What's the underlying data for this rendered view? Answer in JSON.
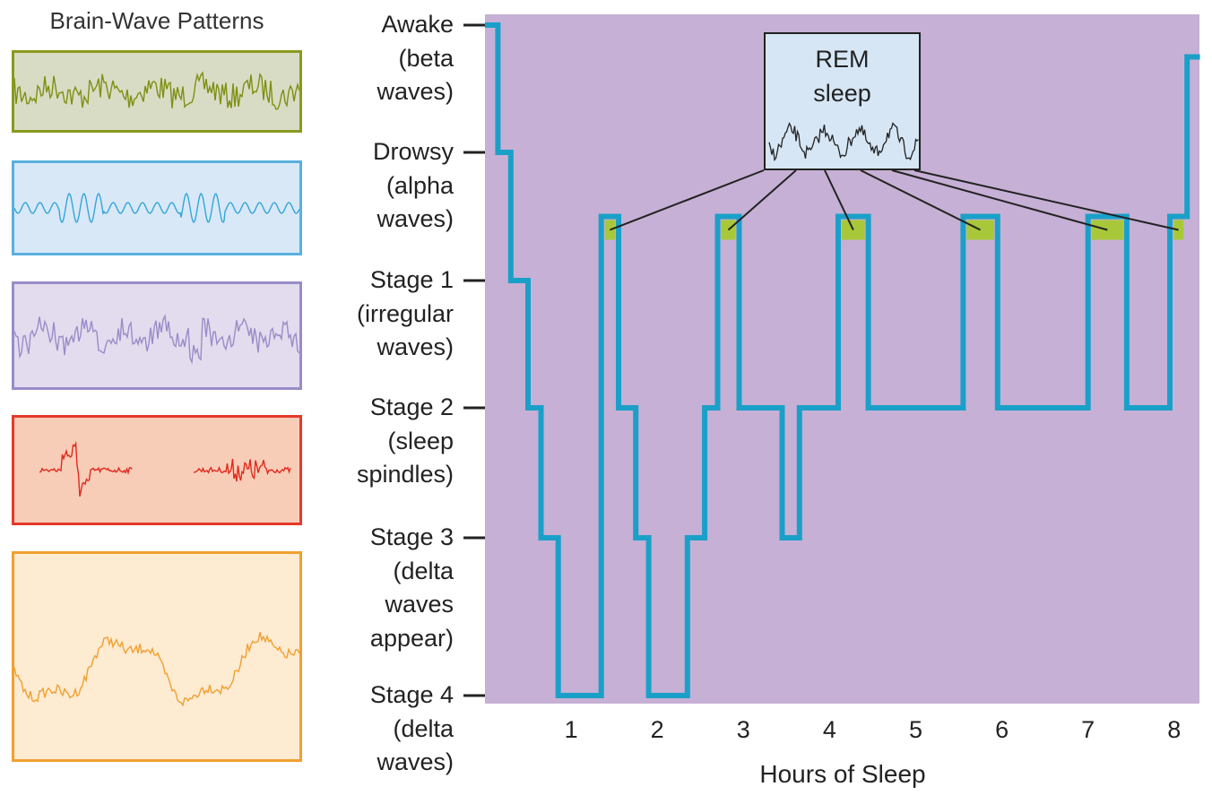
{
  "panel_title": "Brain-Wave Patterns",
  "wave_boxes": [
    {
      "name": "beta",
      "border": "#8a9a1e",
      "fill": "#d9dcc4",
      "stroke": "#7e8f12"
    },
    {
      "name": "alpha",
      "border": "#5ab0e0",
      "fill": "#d8e8f7",
      "stroke": "#33a6d8"
    },
    {
      "name": "irregular",
      "border": "#9a8cc8",
      "fill": "#e2dcee",
      "stroke": "#9a8cc8"
    },
    {
      "name": "spindles",
      "border": "#e53a2a",
      "fill": "#f8cdb8",
      "stroke": "#e02a1e"
    },
    {
      "name": "delta",
      "border": "#f0a030",
      "fill": "#fdebd2",
      "stroke": "#f0a030"
    }
  ],
  "stages": [
    {
      "lines": [
        "Awake",
        "(beta",
        "waves)"
      ],
      "level": 0
    },
    {
      "lines": [
        "Drowsy",
        "(alpha",
        "waves)"
      ],
      "level": 1
    },
    {
      "lines": [
        "Stage 1",
        "(irregular",
        "waves)"
      ],
      "level": 2
    },
    {
      "lines": [
        "Stage 2",
        "(sleep",
        "spindles)"
      ],
      "level": 3
    },
    {
      "lines": [
        "Stage 3",
        "(delta",
        "waves",
        "appear)"
      ],
      "level": 4
    },
    {
      "lines": [
        "Stage 4",
        "(delta",
        "waves)"
      ],
      "level": 5
    }
  ],
  "rem_box": {
    "lines": [
      "REM",
      "sleep"
    ],
    "fill": "#d6e6f5"
  },
  "colors": {
    "plot_bg": "#c6b0d5",
    "trace": "#1aa0c8",
    "rem": "#a8c83a"
  },
  "chart_data": {
    "type": "line",
    "title": "",
    "xlabel": "Hours of Sleep",
    "ylabel": "",
    "x_ticks": [
      1,
      2,
      3,
      4,
      5,
      6,
      7,
      8
    ],
    "xlim": [
      0,
      8.3
    ],
    "y_categories": [
      "Awake (beta waves)",
      "Drowsy (alpha waves)",
      "Stage 1 (irregular waves)",
      "Stage 2 (sleep spindles)",
      "Stage 3 (delta waves appear)",
      "Stage 4 (delta waves)"
    ],
    "rem_level": 1.5,
    "series": [
      {
        "x": [
          0,
          0.15,
          0.15,
          0.3,
          0.3,
          0.5,
          0.5,
          0.65,
          0.65,
          0.85,
          0.85,
          1.35,
          1.35,
          1.55,
          1.55,
          1.75,
          1.75,
          1.9,
          1.9,
          2.35,
          2.35,
          2.55,
          2.55,
          2.7,
          2.7,
          2.95,
          2.95,
          3.45,
          3.45,
          3.65,
          3.65,
          4.1,
          4.1,
          4.45,
          4.45,
          5.55,
          5.55,
          5.95,
          5.95,
          7.0,
          7.0,
          7.45,
          7.45,
          7.95,
          7.95,
          8.15,
          8.15,
          8.3
        ],
        "y": [
          0,
          0,
          1,
          1,
          2,
          2,
          3,
          3,
          4,
          4,
          5,
          5,
          1.5,
          1.5,
          3,
          3,
          4,
          4,
          5,
          5,
          4,
          4,
          3,
          3,
          1.5,
          1.5,
          3,
          3,
          4,
          4,
          3,
          3,
          1.5,
          1.5,
          3,
          3,
          1.5,
          1.5,
          3,
          3,
          1.5,
          1.5,
          3,
          3,
          1.5,
          1.5,
          0.25,
          0.25
        ]
      }
    ],
    "rem_periods": [
      [
        1.35,
        1.55
      ],
      [
        2.7,
        2.95
      ],
      [
        4.1,
        4.45
      ],
      [
        5.55,
        5.95
      ],
      [
        7.0,
        7.45
      ],
      [
        7.95,
        8.15
      ]
    ]
  }
}
